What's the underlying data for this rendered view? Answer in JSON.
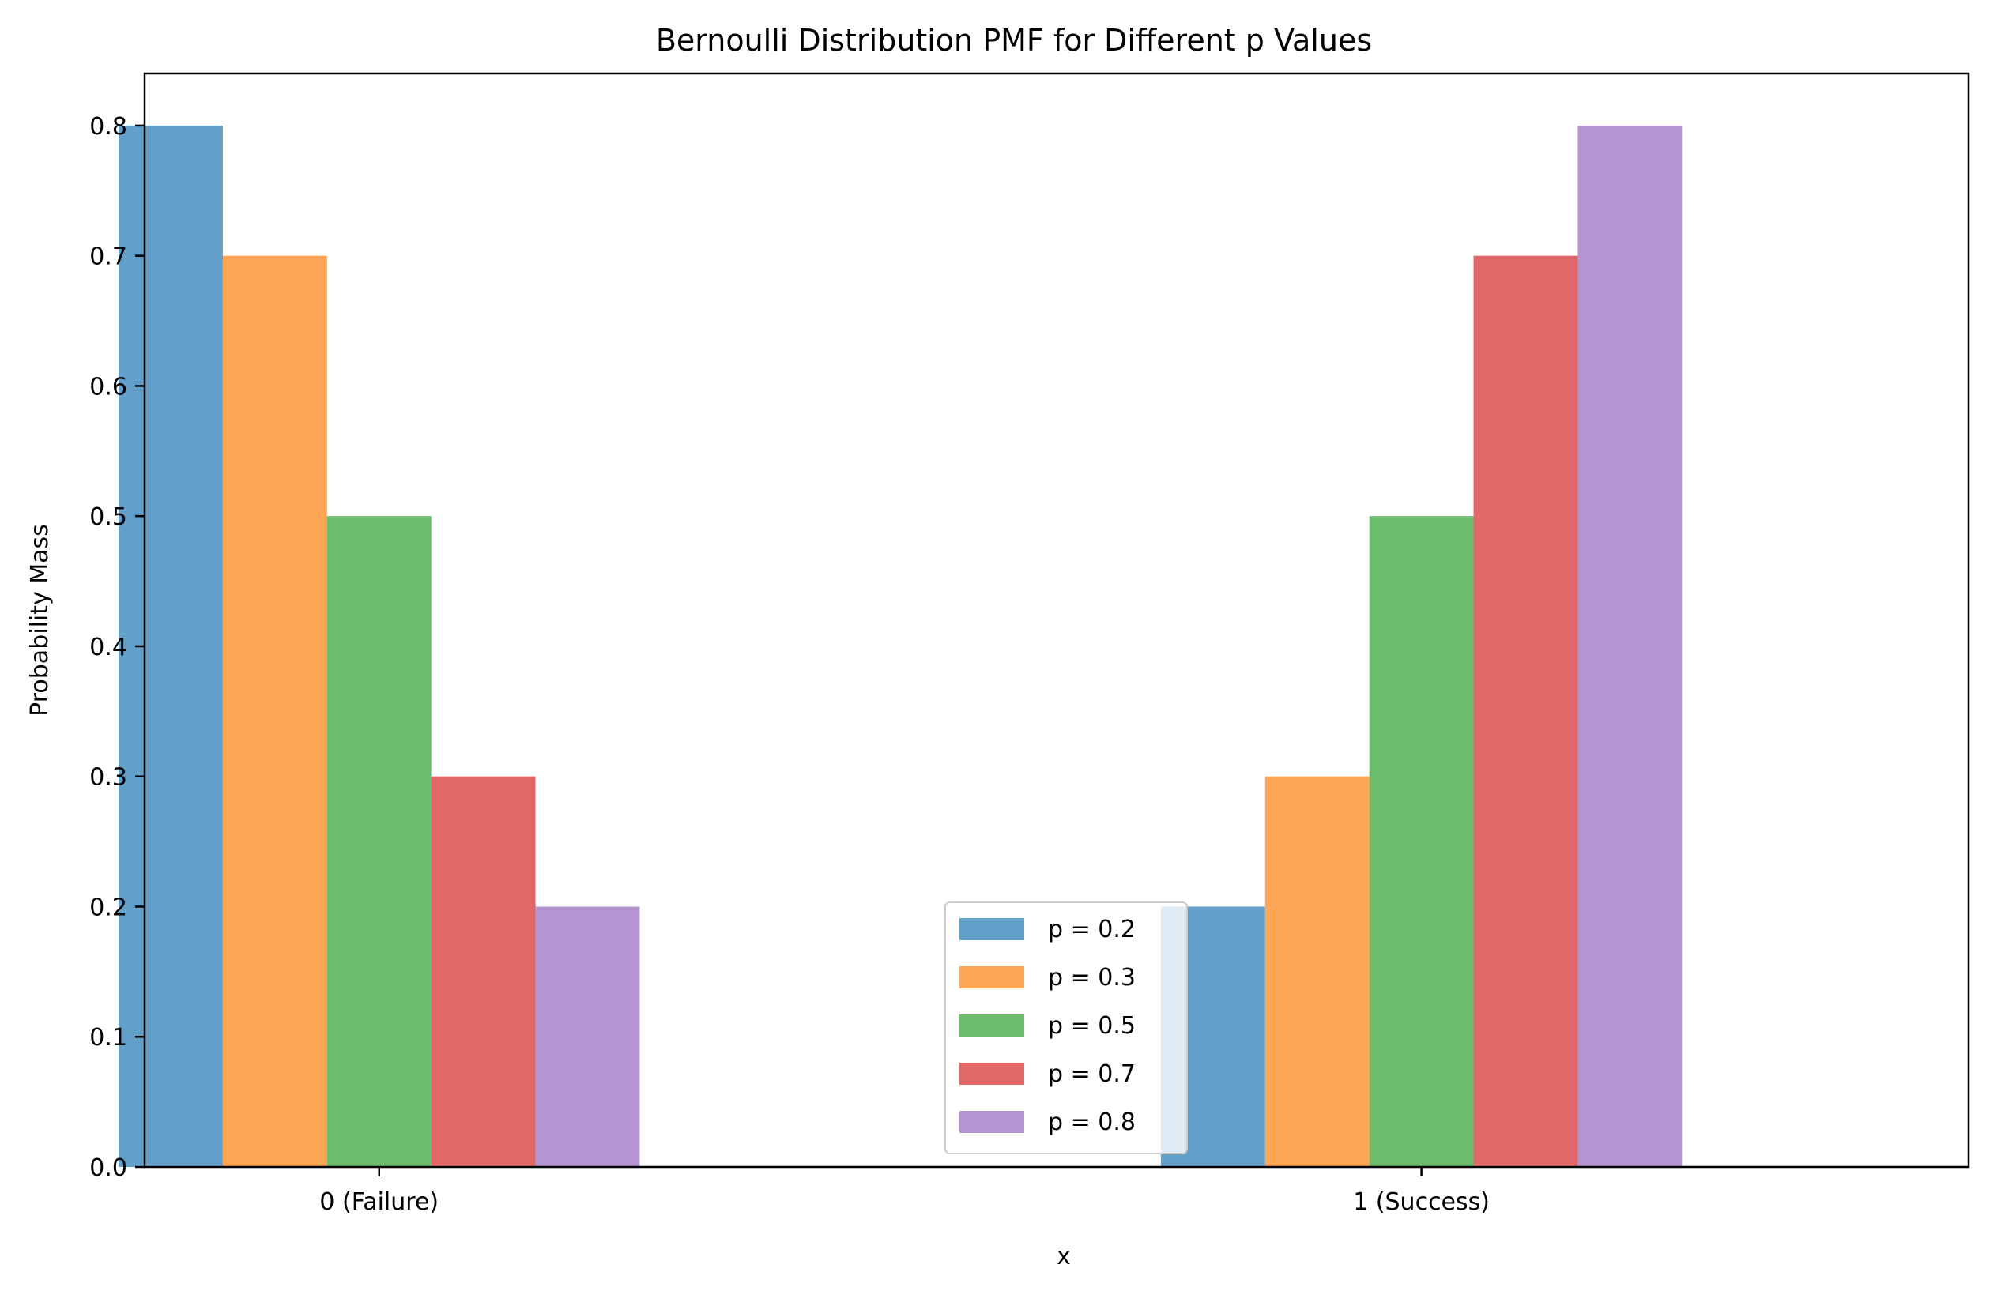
{
  "chart_data": {
    "type": "bar",
    "title": "Bernoulli Distribution PMF for Different p Values",
    "xlabel": "x",
    "ylabel": "Probability Mass",
    "categories": [
      "0 (Failure)",
      "1 (Success)"
    ],
    "series": [
      {
        "name": "p = 0.2",
        "values": [
          0.8,
          0.2
        ],
        "color": "#1f77b4"
      },
      {
        "name": "p = 0.3",
        "values": [
          0.7,
          0.3
        ],
        "color": "#ff7f0e"
      },
      {
        "name": "p = 0.5",
        "values": [
          0.5,
          0.5
        ],
        "color": "#2ca02c"
      },
      {
        "name": "p = 0.7",
        "values": [
          0.3,
          0.7
        ],
        "color": "#d62728"
      },
      {
        "name": "p = 0.8",
        "values": [
          0.2,
          0.8
        ],
        "color": "#9467bd"
      }
    ],
    "bar_alpha": 0.7,
    "ylim": [
      0,
      0.84
    ],
    "yticks": [
      "0.0",
      "0.1",
      "0.2",
      "0.3",
      "0.4",
      "0.5",
      "0.6",
      "0.7",
      "0.8"
    ],
    "grid": false,
    "legend_position": "lower center"
  }
}
